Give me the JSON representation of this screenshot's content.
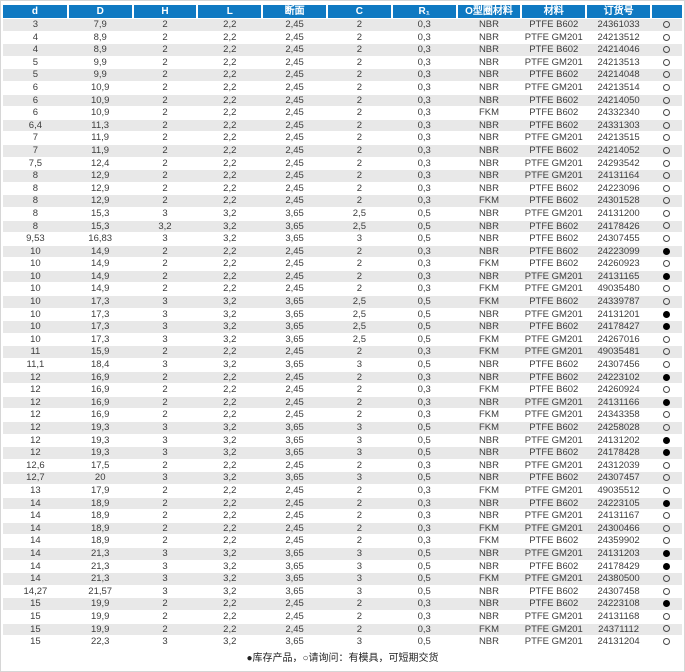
{
  "page": {
    "legend": "●库存产品，○请询问：有模具，可短期交货"
  },
  "colors": {
    "header_bg": "#0f79c2",
    "row_stripe": "#e8e8e8",
    "text": "#3d3d3d",
    "header_text": "#ffffff",
    "stock_filled": "#000000"
  },
  "table": {
    "columns": [
      "d",
      "D",
      "H",
      "L",
      "断面",
      "C",
      "R₁",
      "O型圈材料",
      "材料",
      "订货号",
      ""
    ],
    "rows": [
      [
        "3",
        "7,9",
        "2",
        "2,2",
        "2,45",
        "2",
        "0,3",
        "NBR",
        "PTFE B602",
        "24361033",
        "○"
      ],
      [
        "4",
        "8,9",
        "2",
        "2,2",
        "2,45",
        "2",
        "0,3",
        "NBR",
        "PTFE GM201",
        "24213512",
        "○"
      ],
      [
        "4",
        "8,9",
        "2",
        "2,2",
        "2,45",
        "2",
        "0,3",
        "NBR",
        "PTFE B602",
        "24214046",
        "○"
      ],
      [
        "5",
        "9,9",
        "2",
        "2,2",
        "2,45",
        "2",
        "0,3",
        "NBR",
        "PTFE GM201",
        "24213513",
        "○"
      ],
      [
        "5",
        "9,9",
        "2",
        "2,2",
        "2,45",
        "2",
        "0,3",
        "NBR",
        "PTFE B602",
        "24214048",
        "○"
      ],
      [
        "6",
        "10,9",
        "2",
        "2,2",
        "2,45",
        "2",
        "0,3",
        "NBR",
        "PTFE GM201",
        "24213514",
        "○"
      ],
      [
        "6",
        "10,9",
        "2",
        "2,2",
        "2,45",
        "2",
        "0,3",
        "NBR",
        "PTFE B602",
        "24214050",
        "○"
      ],
      [
        "6",
        "10,9",
        "2",
        "2,2",
        "2,45",
        "2",
        "0,3",
        "FKM",
        "PTFE B602",
        "24332340",
        "○"
      ],
      [
        "6,4",
        "11,3",
        "2",
        "2,2",
        "2,45",
        "2",
        "0,3",
        "NBR",
        "PTFE B602",
        "24331303",
        "○"
      ],
      [
        "7",
        "11,9",
        "2",
        "2,2",
        "2,45",
        "2",
        "0,3",
        "NBR",
        "PTFE GM201",
        "24213515",
        "○"
      ],
      [
        "7",
        "11,9",
        "2",
        "2,2",
        "2,45",
        "2",
        "0,3",
        "NBR",
        "PTFE B602",
        "24214052",
        "○"
      ],
      [
        "7,5",
        "12,4",
        "2",
        "2,2",
        "2,45",
        "2",
        "0,3",
        "NBR",
        "PTFE GM201",
        "24293542",
        "○"
      ],
      [
        "8",
        "12,9",
        "2",
        "2,2",
        "2,45",
        "2",
        "0,3",
        "NBR",
        "PTFE GM201",
        "24131164",
        "○"
      ],
      [
        "8",
        "12,9",
        "2",
        "2,2",
        "2,45",
        "2",
        "0,3",
        "NBR",
        "PTFE B602",
        "24223096",
        "○"
      ],
      [
        "8",
        "12,9",
        "2",
        "2,2",
        "2,45",
        "2",
        "0,3",
        "FKM",
        "PTFE B602",
        "24301528",
        "○"
      ],
      [
        "8",
        "15,3",
        "3",
        "3,2",
        "3,65",
        "2,5",
        "0,5",
        "NBR",
        "PTFE GM201",
        "24131200",
        "○"
      ],
      [
        "8",
        "15,3",
        "3,2",
        "3,2",
        "3,65",
        "2,5",
        "0,5",
        "NBR",
        "PTFE B602",
        "24178426",
        "○"
      ],
      [
        "9,53",
        "16,83",
        "3",
        "3,2",
        "3,65",
        "3",
        "0,5",
        "NBR",
        "PTFE B602",
        "24307455",
        "○"
      ],
      [
        "10",
        "14,9",
        "2",
        "2,2",
        "2,45",
        "2",
        "0,3",
        "NBR",
        "PTFE B602",
        "24223099",
        "●"
      ],
      [
        "10",
        "14,9",
        "2",
        "2,2",
        "2,45",
        "2",
        "0,3",
        "FKM",
        "PTFE B602",
        "24260923",
        "○"
      ],
      [
        "10",
        "14,9",
        "2",
        "2,2",
        "2,45",
        "2",
        "0,3",
        "NBR",
        "PTFE GM201",
        "24131165",
        "●"
      ],
      [
        "10",
        "14,9",
        "2",
        "2,2",
        "2,45",
        "2",
        "0,3",
        "FKM",
        "PTFE GM201",
        "49035480",
        "○"
      ],
      [
        "10",
        "17,3",
        "3",
        "3,2",
        "3,65",
        "2,5",
        "0,5",
        "FKM",
        "PTFE B602",
        "24339787",
        "○"
      ],
      [
        "10",
        "17,3",
        "3",
        "3,2",
        "3,65",
        "2,5",
        "0,5",
        "NBR",
        "PTFE GM201",
        "24131201",
        "●"
      ],
      [
        "10",
        "17,3",
        "3",
        "3,2",
        "3,65",
        "2,5",
        "0,5",
        "NBR",
        "PTFE B602",
        "24178427",
        "●"
      ],
      [
        "10",
        "17,3",
        "3",
        "3,2",
        "3,65",
        "2,5",
        "0,5",
        "FKM",
        "PTFE GM201",
        "24267016",
        "○"
      ],
      [
        "11",
        "15,9",
        "2",
        "2,2",
        "2,45",
        "2",
        "0,3",
        "FKM",
        "PTFE GM201",
        "49035481",
        "○"
      ],
      [
        "11,1",
        "18,4",
        "3",
        "3,2",
        "3,65",
        "3",
        "0,5",
        "NBR",
        "PTFE B602",
        "24307456",
        "○"
      ],
      [
        "12",
        "16,9",
        "2",
        "2,2",
        "2,45",
        "2",
        "0,3",
        "NBR",
        "PTFE B602",
        "24223102",
        "●"
      ],
      [
        "12",
        "16,9",
        "2",
        "2,2",
        "2,45",
        "2",
        "0,3",
        "FKM",
        "PTFE B602",
        "24260924",
        "○"
      ],
      [
        "12",
        "16,9",
        "2",
        "2,2",
        "2,45",
        "2",
        "0,3",
        "NBR",
        "PTFE GM201",
        "24131166",
        "●"
      ],
      [
        "12",
        "16,9",
        "2",
        "2,2",
        "2,45",
        "2",
        "0,3",
        "FKM",
        "PTFE GM201",
        "24343358",
        "○"
      ],
      [
        "12",
        "19,3",
        "3",
        "3,2",
        "3,65",
        "3",
        "0,5",
        "FKM",
        "PTFE B602",
        "24258028",
        "○"
      ],
      [
        "12",
        "19,3",
        "3",
        "3,2",
        "3,65",
        "3",
        "0,5",
        "NBR",
        "PTFE GM201",
        "24131202",
        "●"
      ],
      [
        "12",
        "19,3",
        "3",
        "3,2",
        "3,65",
        "3",
        "0,5",
        "NBR",
        "PTFE B602",
        "24178428",
        "●"
      ],
      [
        "12,6",
        "17,5",
        "2",
        "2,2",
        "2,45",
        "2",
        "0,3",
        "NBR",
        "PTFE GM201",
        "24312039",
        "○"
      ],
      [
        "12,7",
        "20",
        "3",
        "3,2",
        "3,65",
        "3",
        "0,5",
        "NBR",
        "PTFE B602",
        "24307457",
        "○"
      ],
      [
        "13",
        "17,9",
        "2",
        "2,2",
        "2,45",
        "2",
        "0,3",
        "FKM",
        "PTFE GM201",
        "49035512",
        "○"
      ],
      [
        "14",
        "18,9",
        "2",
        "2,2",
        "2,45",
        "2",
        "0,3",
        "NBR",
        "PTFE B602",
        "24223105",
        "●"
      ],
      [
        "14",
        "18,9",
        "2",
        "2,2",
        "2,45",
        "2",
        "0,3",
        "NBR",
        "PTFE GM201",
        "24131167",
        "○"
      ],
      [
        "14",
        "18,9",
        "2",
        "2,2",
        "2,45",
        "2",
        "0,3",
        "FKM",
        "PTFE GM201",
        "24300466",
        "○"
      ],
      [
        "14",
        "18,9",
        "2",
        "2,2",
        "2,45",
        "2",
        "0,3",
        "FKM",
        "PTFE B602",
        "24359902",
        "○"
      ],
      [
        "14",
        "21,3",
        "3",
        "3,2",
        "3,65",
        "3",
        "0,5",
        "NBR",
        "PTFE GM201",
        "24131203",
        "●"
      ],
      [
        "14",
        "21,3",
        "3",
        "3,2",
        "3,65",
        "3",
        "0,5",
        "NBR",
        "PTFE B602",
        "24178429",
        "●"
      ],
      [
        "14",
        "21,3",
        "3",
        "3,2",
        "3,65",
        "3",
        "0,5",
        "FKM",
        "PTFE GM201",
        "24380500",
        "○"
      ],
      [
        "14,27",
        "21,57",
        "3",
        "3,2",
        "3,65",
        "3",
        "0,5",
        "NBR",
        "PTFE B602",
        "24307458",
        "○"
      ],
      [
        "15",
        "19,9",
        "2",
        "2,2",
        "2,45",
        "2",
        "0,3",
        "NBR",
        "PTFE B602",
        "24223108",
        "●"
      ],
      [
        "15",
        "19,9",
        "2",
        "2,2",
        "2,45",
        "2",
        "0,3",
        "NBR",
        "PTFE GM201",
        "24131168",
        "○"
      ],
      [
        "15",
        "19,9",
        "2",
        "2,2",
        "2,45",
        "2",
        "0,3",
        "FKM",
        "PTFE GM201",
        "24371112",
        "○"
      ],
      [
        "15",
        "22,3",
        "3",
        "3,2",
        "3,65",
        "3",
        "0,5",
        "NBR",
        "PTFE GM201",
        "24131204",
        "○"
      ]
    ]
  }
}
